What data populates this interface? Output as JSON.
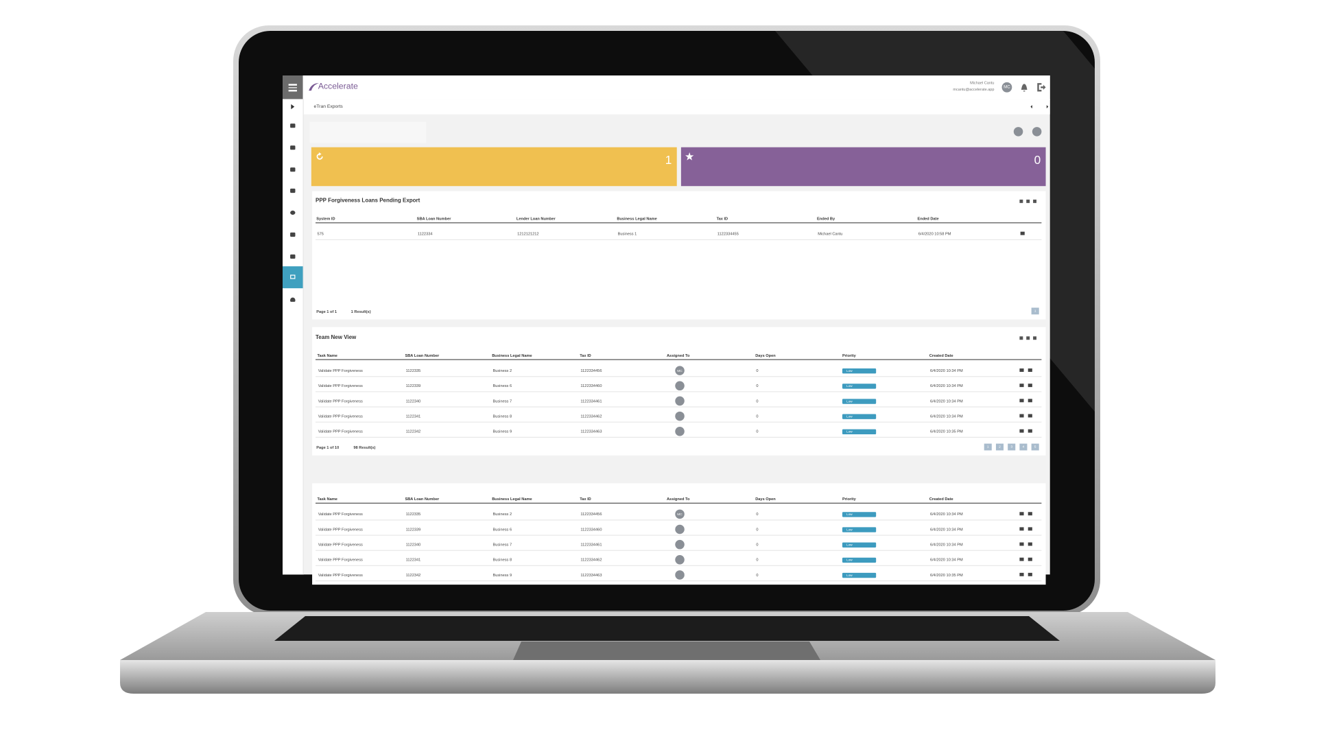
{
  "header": {
    "logo": "Accelerate",
    "user_name": "Michael Cantu",
    "user_email": "mcantu@accelerate.app",
    "avatar": "MC"
  },
  "breadcrumb": "eTran Exports",
  "tiles": [
    {
      "value": 1,
      "color": "#f0c050"
    },
    {
      "value": 0,
      "color": "#866198"
    }
  ],
  "panels": [
    {
      "title": "PPP Forgiveness Loans Pending Export",
      "columns": [
        "System ID",
        "SBA Loan Number",
        "Lender Loan Number",
        "Business Legal Name",
        "Tax ID",
        "Ended By",
        "Ended Date"
      ],
      "rows": [
        [
          "575",
          "1122334",
          "1212121212",
          "Business 1",
          "1122334455",
          "Michael Cantu",
          "6/4/2020 10:58 PM"
        ]
      ],
      "footer": {
        "page": "Page 1 of 1",
        "results": "1 Result(s)",
        "pages": [
          "1"
        ]
      }
    },
    {
      "title": "Team New View",
      "columns": [
        "Task Name",
        "SBA Loan Number",
        "Business Legal Name",
        "Tax ID",
        "Assigned To",
        "Days Open",
        "Priority",
        "Created Date"
      ],
      "rows": [
        [
          "Validate PPP Forgiveness",
          "1122335",
          "Business 2",
          "1122334456",
          "MC",
          "0",
          "Low",
          "6/4/2020 10:34 PM"
        ],
        [
          "Validate PPP Forgiveness",
          "1122339",
          "Business 6",
          "1122334460",
          null,
          "0",
          "Low",
          "6/4/2020 10:34 PM"
        ],
        [
          "Validate PPP Forgiveness",
          "1122340",
          "Business 7",
          "1122334461",
          null,
          "0",
          "Low",
          "6/4/2020 10:34 PM"
        ],
        [
          "Validate PPP Forgiveness",
          "1122341",
          "Business 8",
          "1122334462",
          null,
          "0",
          "Low",
          "6/4/2020 10:34 PM"
        ],
        [
          "Validate PPP Forgiveness",
          "1122342",
          "Business 9",
          "1122334463",
          null,
          "0",
          "Low",
          "6/4/2020 10:35 PM"
        ]
      ],
      "footer": {
        "page": "Page 1 of 10",
        "results": "98 Result(s)",
        "pages": [
          "1",
          "2",
          "3",
          "4",
          "5"
        ]
      }
    },
    {
      "columns": [
        "Task Name",
        "SBA Loan Number",
        "Business Legal Name",
        "Tax ID",
        "Assigned To",
        "Days Open",
        "Priority",
        "Created Date"
      ],
      "rows": [
        [
          "Validate PPP Forgiveness",
          "1122335",
          "Business 2",
          "1122334456",
          "MC",
          "0",
          "Low",
          "6/4/2020 10:34 PM"
        ],
        [
          "Validate PPP Forgiveness",
          "1122339",
          "Business 6",
          "1122334460",
          null,
          "0",
          "Low",
          "6/4/2020 10:34 PM"
        ],
        [
          "Validate PPP Forgiveness",
          "1122340",
          "Business 7",
          "1122334461",
          null,
          "0",
          "Low",
          "6/4/2020 10:34 PM"
        ],
        [
          "Validate PPP Forgiveness",
          "1122341",
          "Business 8",
          "1122334462",
          null,
          "0",
          "Low",
          "6/4/2020 10:34 PM"
        ],
        [
          "Validate PPP Forgiveness",
          "1122342",
          "Business 9",
          "1122334463",
          null,
          "0",
          "Low",
          "6/4/2020 10:35 PM"
        ]
      ]
    }
  ]
}
